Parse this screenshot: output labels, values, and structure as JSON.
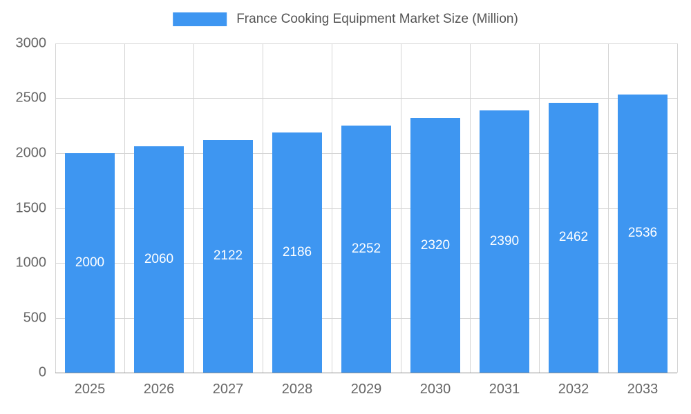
{
  "colors": {
    "bar": "#3E96F1",
    "grid": "#d4d4d4",
    "axis_line": "#8f8f8f",
    "tick_text": "#666666",
    "legend_text": "#555555",
    "bar_label_text": "#ffffff",
    "background": "#ffffff"
  },
  "legend": {
    "label": "France Cooking Equipment Market Size (Million)"
  },
  "chart_data": {
    "type": "bar",
    "title": "France Cooking Equipment Market Size (Million)",
    "categories": [
      "2025",
      "2026",
      "2027",
      "2028",
      "2029",
      "2030",
      "2031",
      "2032",
      "2033"
    ],
    "values": [
      2000,
      2060,
      2122,
      2186,
      2252,
      2320,
      2390,
      2462,
      2536
    ],
    "xlabel": "",
    "ylabel": "",
    "ylim": [
      0,
      3000
    ],
    "yticks": [
      0,
      500,
      1000,
      1500,
      2000,
      2500,
      3000
    ],
    "grid": true,
    "legend_position": "top",
    "data_labels": "inside-center"
  }
}
